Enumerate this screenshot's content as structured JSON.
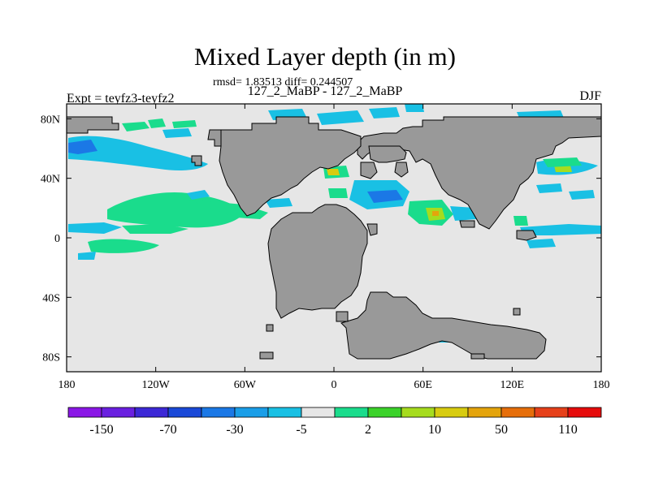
{
  "title": "Mixed Layer depth (in m)",
  "stats": "rmsd= 1.83513 diff= 0.244507",
  "subtitle": "127_2_MaBP - 127_2_MaBP",
  "left_label": "Expt = teyfz3-teyfz2",
  "right_label": "DJF",
  "map": {
    "projection": "cylindrical-equidistant",
    "lon_range": [
      -180,
      180
    ],
    "lat_range": [
      -90,
      90
    ],
    "ocean_color": "#e6e6e6",
    "land_color": "#999999",
    "lon_ticks": [
      {
        "value": -180,
        "label": "180"
      },
      {
        "value": -120,
        "label": "120W"
      },
      {
        "value": -60,
        "label": "60W"
      },
      {
        "value": 0,
        "label": "0"
      },
      {
        "value": 60,
        "label": "60E"
      },
      {
        "value": 120,
        "label": "120E"
      },
      {
        "value": 180,
        "label": "180"
      }
    ],
    "lat_ticks": [
      {
        "value": 80,
        "label": "80N"
      },
      {
        "value": 40,
        "label": "40N"
      },
      {
        "value": 0,
        "label": "0"
      },
      {
        "value": -40,
        "label": "40S"
      },
      {
        "value": -80,
        "label": "80S"
      }
    ]
  },
  "colorbar": {
    "colors": [
      "#8a17e6",
      "#6a20e0",
      "#3c28d6",
      "#1a49d8",
      "#1b78e6",
      "#1a9ee8",
      "#19c0e4",
      "#e6e6e6",
      "#1adc8c",
      "#3bd22a",
      "#a6dc1e",
      "#d8cc10",
      "#e4a40c",
      "#e66e0a",
      "#e6401a",
      "#e60c0c"
    ],
    "labels": [
      "-150",
      "-70",
      "-30",
      "-5",
      "2",
      "10",
      "50",
      "110"
    ]
  }
}
